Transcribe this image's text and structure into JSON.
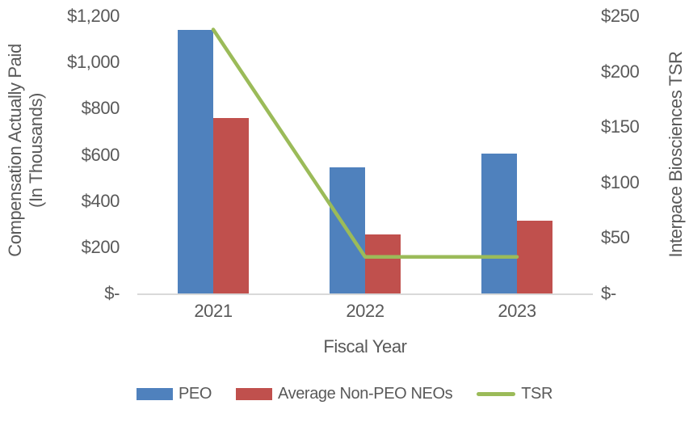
{
  "chart_data": {
    "type": "combo-bar-line",
    "categories": [
      "2021",
      "2022",
      "2023"
    ],
    "series": [
      {
        "name": "PEO",
        "type": "bar",
        "axis": "left",
        "color": "#4F81BD",
        "values": [
          1140,
          545,
          605
        ]
      },
      {
        "name": "Average Non-PEO NEOs",
        "type": "bar",
        "axis": "left",
        "color": "#C0504D",
        "values": [
          760,
          255,
          315
        ]
      },
      {
        "name": "TSR",
        "type": "line",
        "axis": "right",
        "color": "#9BBB59",
        "values": [
          238,
          33,
          33
        ]
      }
    ],
    "xlabel": "Fiscal Year",
    "left_axis": {
      "title": "Compensation Actually Paid (In Thousands)",
      "title_line1": "Compensation Actually Paid",
      "title_line2": "(In Thousands)",
      "ticks": [
        "$1,200",
        "$1,000",
        "$800",
        "$600",
        "$400",
        "$200",
        "$-"
      ],
      "tick_values": [
        1200,
        1000,
        800,
        600,
        400,
        200,
        0
      ],
      "range": [
        0,
        1200
      ]
    },
    "right_axis": {
      "title": "Interpace Biosciences TSR",
      "ticks": [
        "$250",
        "$200",
        "$150",
        "$100",
        "$50",
        "$-"
      ],
      "tick_values": [
        250,
        200,
        150,
        100,
        50,
        0
      ],
      "range": [
        0,
        250
      ]
    },
    "legend_position": "bottom",
    "grid": false,
    "colors": {
      "text": "#595959",
      "axis_line": "#D9D9D9",
      "peo_bar": "#4F81BD",
      "non_peo_bar": "#C0504D",
      "tsr_line": "#9BBB59"
    }
  }
}
